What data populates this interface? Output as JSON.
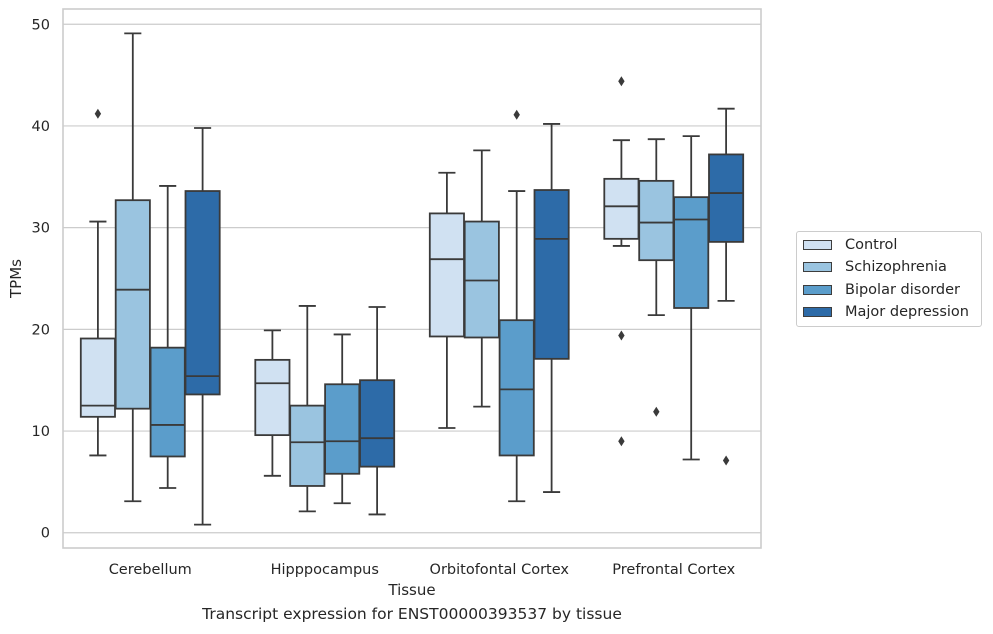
{
  "chart_data": {
    "type": "box",
    "title": "",
    "caption": "Transcript expression for ENST00000393537 by tissue",
    "xlabel": "Tissue",
    "ylabel": "TPMs",
    "ylim": [
      -1.5,
      51.5
    ],
    "yticks": [
      0,
      10,
      20,
      30,
      40,
      50
    ],
    "grid": true,
    "legend_position": "right",
    "categories": [
      "Cerebellum",
      "Hipppocampus",
      "Orbitofontal Cortex",
      "Prefrontal Cortex"
    ],
    "series": [
      {
        "name": "Control",
        "color": "#d0e1f2",
        "boxes": [
          {
            "whislo": 7.6,
            "q1": 11.4,
            "med": 12.5,
            "q3": 19.1,
            "whishi": 30.6,
            "fliers": [
              41.2
            ]
          },
          {
            "whislo": 5.6,
            "q1": 9.6,
            "med": 14.7,
            "q3": 17.0,
            "whishi": 19.9,
            "fliers": []
          },
          {
            "whislo": 10.3,
            "q1": 19.3,
            "med": 26.9,
            "q3": 31.4,
            "whishi": 35.4,
            "fliers": []
          },
          {
            "whislo": 28.2,
            "q1": 28.9,
            "med": 32.1,
            "q3": 34.8,
            "whishi": 38.6,
            "fliers": [
              44.4,
              19.4,
              9.0
            ]
          }
        ]
      },
      {
        "name": "Schizophrenia",
        "color": "#9ac4e0",
        "boxes": [
          {
            "whislo": 3.1,
            "q1": 12.2,
            "med": 23.9,
            "q3": 32.7,
            "whishi": 49.1,
            "fliers": []
          },
          {
            "whislo": 2.1,
            "q1": 4.6,
            "med": 8.9,
            "q3": 12.5,
            "whishi": 22.3,
            "fliers": []
          },
          {
            "whislo": 12.4,
            "q1": 19.2,
            "med": 24.8,
            "q3": 30.6,
            "whishi": 37.6,
            "fliers": []
          },
          {
            "whislo": 21.4,
            "q1": 26.8,
            "med": 30.5,
            "q3": 34.6,
            "whishi": 38.7,
            "fliers": [
              11.9
            ]
          }
        ]
      },
      {
        "name": "Bipolar disorder",
        "color": "#5b9dcb",
        "boxes": [
          {
            "whislo": 4.4,
            "q1": 7.5,
            "med": 10.6,
            "q3": 18.2,
            "whishi": 34.1,
            "fliers": []
          },
          {
            "whislo": 2.9,
            "q1": 5.8,
            "med": 9.0,
            "q3": 14.6,
            "whishi": 19.5,
            "fliers": []
          },
          {
            "whislo": 3.1,
            "q1": 7.6,
            "med": 14.1,
            "q3": 20.9,
            "whishi": 33.6,
            "fliers": [
              41.1
            ]
          },
          {
            "whislo": 7.2,
            "q1": 22.1,
            "med": 30.8,
            "q3": 33.0,
            "whishi": 39.0,
            "fliers": []
          }
        ]
      },
      {
        "name": "Major depression",
        "color": "#2d6ba8",
        "boxes": [
          {
            "whislo": 0.8,
            "q1": 13.6,
            "med": 15.4,
            "q3": 33.6,
            "whishi": 39.8,
            "fliers": []
          },
          {
            "whislo": 1.8,
            "q1": 6.5,
            "med": 9.3,
            "q3": 15.0,
            "whishi": 22.2,
            "fliers": []
          },
          {
            "whislo": 4.0,
            "q1": 17.1,
            "med": 28.9,
            "q3": 33.7,
            "whishi": 40.2,
            "fliers": []
          },
          {
            "whislo": 22.8,
            "q1": 28.6,
            "med": 33.4,
            "q3": 37.2,
            "whishi": 41.7,
            "fliers": [
              7.1
            ]
          }
        ]
      }
    ]
  }
}
